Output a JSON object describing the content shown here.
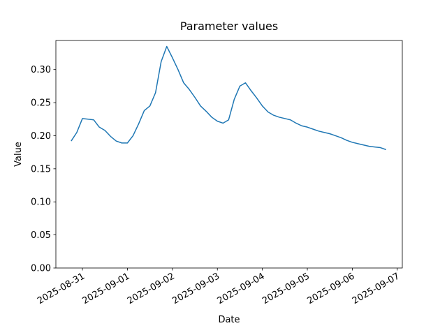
{
  "chart_data": {
    "type": "line",
    "title": "Parameter values",
    "x_label": "Date",
    "y_label": "Value",
    "x": [
      "2025-08-30T18:00",
      "2025-08-30T21:00",
      "2025-08-31T00:00",
      "2025-08-31T03:00",
      "2025-08-31T06:00",
      "2025-08-31T09:00",
      "2025-08-31T12:00",
      "2025-08-31T15:00",
      "2025-08-31T18:00",
      "2025-08-31T21:00",
      "2025-09-01T00:00",
      "2025-09-01T03:00",
      "2025-09-01T06:00",
      "2025-09-01T09:00",
      "2025-09-01T12:00",
      "2025-09-01T15:00",
      "2025-09-01T18:00",
      "2025-09-01T21:00",
      "2025-09-02T00:00",
      "2025-09-02T03:00",
      "2025-09-02T06:00",
      "2025-09-02T09:00",
      "2025-09-02T12:00",
      "2025-09-02T15:00",
      "2025-09-02T18:00",
      "2025-09-02T21:00",
      "2025-09-03T00:00",
      "2025-09-03T03:00",
      "2025-09-03T06:00",
      "2025-09-03T09:00",
      "2025-09-03T12:00",
      "2025-09-03T15:00",
      "2025-09-03T18:00",
      "2025-09-03T21:00",
      "2025-09-04T00:00",
      "2025-09-04T03:00",
      "2025-09-04T06:00",
      "2025-09-04T09:00",
      "2025-09-04T12:00",
      "2025-09-04T15:00",
      "2025-09-04T18:00",
      "2025-09-04T21:00",
      "2025-09-05T00:00",
      "2025-09-05T03:00",
      "2025-09-05T06:00",
      "2025-09-05T09:00",
      "2025-09-05T12:00",
      "2025-09-05T15:00",
      "2025-09-05T18:00",
      "2025-09-05T21:00",
      "2025-09-06T00:00",
      "2025-09-06T03:00",
      "2025-09-06T06:00",
      "2025-09-06T09:00",
      "2025-09-06T12:00",
      "2025-09-06T15:00",
      "2025-09-06T18:00"
    ],
    "series": [
      {
        "color": "#1f77b4",
        "values": [
          0.192,
          0.205,
          0.226,
          0.225,
          0.224,
          0.213,
          0.208,
          0.199,
          0.192,
          0.189,
          0.189,
          0.2,
          0.218,
          0.238,
          0.245,
          0.265,
          0.312,
          0.335,
          0.318,
          0.3,
          0.28,
          0.27,
          0.258,
          0.245,
          0.237,
          0.228,
          0.222,
          0.219,
          0.224,
          0.255,
          0.275,
          0.28,
          0.268,
          0.257,
          0.245,
          0.236,
          0.231,
          0.228,
          0.226,
          0.224,
          0.219,
          0.215,
          0.213,
          0.21,
          0.207,
          0.205,
          0.203,
          0.2,
          0.197,
          0.193,
          0.19,
          0.188,
          0.186,
          0.184,
          0.183,
          0.182,
          0.179
        ]
      }
    ],
    "xlim": [
      "2025-08-30T09:50",
      "2025-09-07T02:40"
    ],
    "xticks": [
      "2025-08-31",
      "2025-09-01",
      "2025-09-02",
      "2025-09-03",
      "2025-09-04",
      "2025-09-05",
      "2025-09-06",
      "2025-09-07"
    ],
    "ylim": [
      0,
      0.344
    ],
    "yticks": [
      {
        "value": 0,
        "label": "0.00"
      },
      {
        "value": 0.05,
        "label": "0.05"
      },
      {
        "value": 0.1,
        "label": "0.10"
      },
      {
        "value": 0.15,
        "label": "0.15"
      },
      {
        "value": 0.2,
        "label": "0.20"
      },
      {
        "value": 0.25,
        "label": "0.25"
      },
      {
        "value": 0.3,
        "label": "0.30"
      }
    ]
  }
}
